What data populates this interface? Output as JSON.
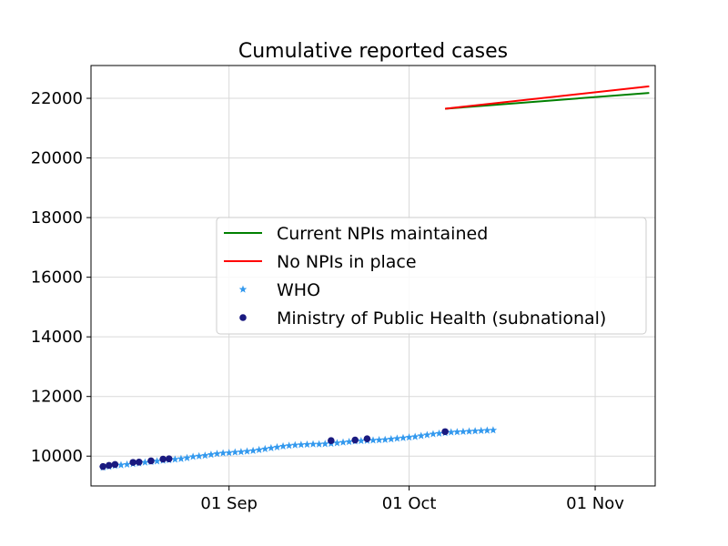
{
  "chart_data": {
    "type": "line",
    "title": "Cumulative reported cases",
    "xlabel": "",
    "ylabel": "",
    "x_axis": {
      "type": "date",
      "range": [
        "2020-08-09",
        "2020-11-11"
      ],
      "ticks": [
        {
          "date": "2020-09-01",
          "label": "01 Sep"
        },
        {
          "date": "2020-10-01",
          "label": "01 Oct"
        },
        {
          "date": "2020-11-01",
          "label": "01 Nov"
        }
      ]
    },
    "y_axis": {
      "range": [
        9000,
        23100
      ],
      "ticks": [
        10000,
        12000,
        14000,
        16000,
        18000,
        20000,
        22000
      ]
    },
    "grid": true,
    "legend": {
      "placement": "center-right",
      "entries": [
        {
          "label": "Current NPIs maintained",
          "kind": "line",
          "series": "current_npis"
        },
        {
          "label": "No NPIs in place",
          "kind": "line",
          "series": "no_npis"
        },
        {
          "label": "WHO",
          "kind": "star",
          "series": "who"
        },
        {
          "label": "Ministry of Public Health (subnational)",
          "kind": "dot",
          "series": "ministry"
        }
      ]
    },
    "colors": {
      "current_npis": "#008000",
      "no_npis": "#ff0000",
      "who": "#3399ee",
      "ministry": "#1a1a80"
    },
    "series": {
      "current_npis": {
        "name": "Current NPIs maintained",
        "points": [
          [
            "2020-10-07",
            21650
          ],
          [
            "2020-11-10",
            22180
          ]
        ]
      },
      "no_npis": {
        "name": "No NPIs in place",
        "points": [
          [
            "2020-10-07",
            21650
          ],
          [
            "2020-11-10",
            22400
          ]
        ]
      },
      "who": {
        "name": "WHO",
        "points": [
          [
            "2020-08-11",
            9620
          ],
          [
            "2020-08-12",
            9650
          ],
          [
            "2020-08-13",
            9680
          ],
          [
            "2020-08-14",
            9700
          ],
          [
            "2020-08-15",
            9720
          ],
          [
            "2020-08-16",
            9740
          ],
          [
            "2020-08-17",
            9760
          ],
          [
            "2020-08-18",
            9790
          ],
          [
            "2020-08-19",
            9810
          ],
          [
            "2020-08-20",
            9830
          ],
          [
            "2020-08-21",
            9850
          ],
          [
            "2020-08-22",
            9870
          ],
          [
            "2020-08-23",
            9890
          ],
          [
            "2020-08-24",
            9910
          ],
          [
            "2020-08-25",
            9940
          ],
          [
            "2020-08-26",
            9980
          ],
          [
            "2020-08-27",
            10000
          ],
          [
            "2020-08-28",
            10020
          ],
          [
            "2020-08-29",
            10050
          ],
          [
            "2020-08-30",
            10080
          ],
          [
            "2020-08-31",
            10100
          ],
          [
            "2020-09-01",
            10110
          ],
          [
            "2020-09-02",
            10130
          ],
          [
            "2020-09-03",
            10140
          ],
          [
            "2020-09-04",
            10160
          ],
          [
            "2020-09-05",
            10180
          ],
          [
            "2020-09-06",
            10210
          ],
          [
            "2020-09-07",
            10240
          ],
          [
            "2020-09-08",
            10270
          ],
          [
            "2020-09-09",
            10300
          ],
          [
            "2020-09-10",
            10330
          ],
          [
            "2020-09-11",
            10350
          ],
          [
            "2020-09-12",
            10370
          ],
          [
            "2020-09-13",
            10380
          ],
          [
            "2020-09-14",
            10390
          ],
          [
            "2020-09-15",
            10400
          ],
          [
            "2020-09-16",
            10400
          ],
          [
            "2020-09-17",
            10410
          ],
          [
            "2020-09-18",
            10420
          ],
          [
            "2020-09-19",
            10440
          ],
          [
            "2020-09-20",
            10460
          ],
          [
            "2020-09-21",
            10480
          ],
          [
            "2020-09-22",
            10500
          ],
          [
            "2020-09-23",
            10510
          ],
          [
            "2020-09-24",
            10520
          ],
          [
            "2020-09-25",
            10530
          ],
          [
            "2020-09-26",
            10540
          ],
          [
            "2020-09-27",
            10550
          ],
          [
            "2020-09-28",
            10570
          ],
          [
            "2020-09-29",
            10590
          ],
          [
            "2020-09-30",
            10610
          ],
          [
            "2020-10-01",
            10630
          ],
          [
            "2020-10-02",
            10650
          ],
          [
            "2020-10-03",
            10680
          ],
          [
            "2020-10-04",
            10710
          ],
          [
            "2020-10-05",
            10740
          ],
          [
            "2020-10-06",
            10760
          ],
          [
            "2020-10-07",
            10780
          ],
          [
            "2020-10-08",
            10800
          ],
          [
            "2020-10-09",
            10810
          ],
          [
            "2020-10-10",
            10820
          ],
          [
            "2020-10-11",
            10830
          ],
          [
            "2020-10-12",
            10840
          ],
          [
            "2020-10-13",
            10850
          ],
          [
            "2020-10-14",
            10860
          ],
          [
            "2020-10-15",
            10870
          ]
        ]
      },
      "ministry": {
        "name": "Ministry of Public Health (subnational)",
        "points": [
          [
            "2020-08-11",
            9650
          ],
          [
            "2020-08-12",
            9690
          ],
          [
            "2020-08-13",
            9720
          ],
          [
            "2020-08-16",
            9790
          ],
          [
            "2020-08-17",
            9800
          ],
          [
            "2020-08-19",
            9840
          ],
          [
            "2020-08-21",
            9900
          ],
          [
            "2020-08-22",
            9910
          ],
          [
            "2020-09-18",
            10520
          ],
          [
            "2020-09-22",
            10540
          ],
          [
            "2020-09-24",
            10580
          ],
          [
            "2020-10-07",
            10820
          ]
        ]
      }
    }
  }
}
